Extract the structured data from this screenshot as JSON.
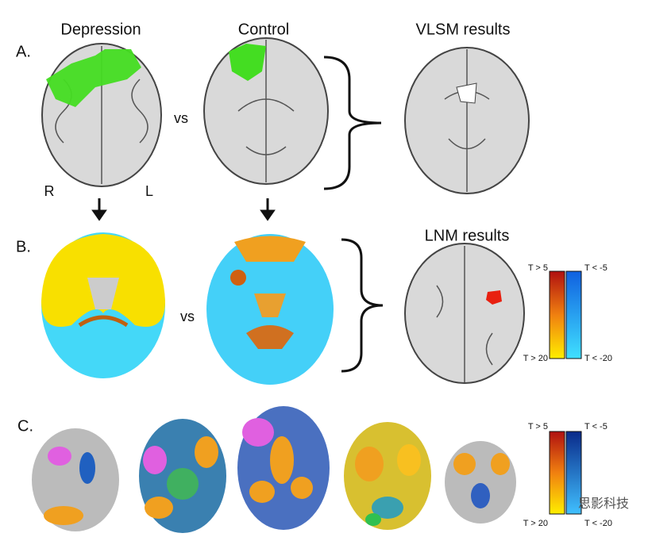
{
  "headers": {
    "depression": "Depression",
    "control": "Control",
    "vlsm": "VLSM results",
    "lnm": "LNM results"
  },
  "panels": {
    "a": "A.",
    "b": "B.",
    "c": "C."
  },
  "labels": {
    "vs_a": "vs",
    "vs_b": "vs",
    "right": "R",
    "left": "L"
  },
  "colorbar_b": {
    "pos_top": "T > 5",
    "neg_top": "T < -5",
    "pos_bottom": "T > 20",
    "neg_bottom": "T < -20"
  },
  "colorbar_c": {
    "pos_top": "T > 5",
    "neg_top": "T < -5",
    "pos_bottom": "T > 20",
    "neg_bottom": "T < -20"
  },
  "watermark": "思影科技"
}
